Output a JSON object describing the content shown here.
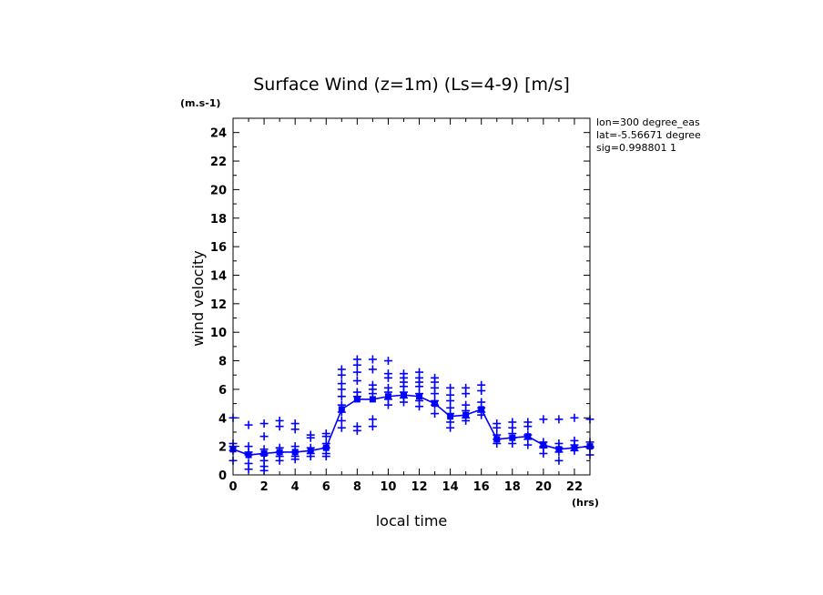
{
  "chart_data": {
    "type": "line",
    "title": "Surface Wind (z=1m) (Ls=4-9) [m/s]",
    "xlabel": "local time",
    "ylabel": "wind velocity",
    "x_unit": "(hrs)",
    "y_unit": "(m.s-1)",
    "xlim": [
      0,
      23
    ],
    "ylim": [
      0,
      25
    ],
    "x_ticks": [
      0,
      2,
      4,
      6,
      8,
      10,
      12,
      14,
      16,
      18,
      20,
      22
    ],
    "x_tick_labels": [
      "0",
      "2",
      "4",
      "6",
      "8",
      "10",
      "12",
      "14",
      "16",
      "18",
      "20",
      "22"
    ],
    "y_ticks": [
      0,
      2,
      4,
      6,
      8,
      10,
      12,
      14,
      16,
      18,
      20,
      22,
      24
    ],
    "y_tick_labels": [
      "0",
      "2",
      "4",
      "6",
      "8",
      "10",
      "12",
      "14",
      "16",
      "18",
      "20",
      "22",
      "24"
    ],
    "color": "#0000ff",
    "annotations": [
      "lon=300 degree_eas",
      "lat=-5.56671 degree",
      "sig=0.998801 1"
    ],
    "series": [
      {
        "name": "mean",
        "style": "line+square",
        "x": [
          0,
          1,
          2,
          3,
          4,
          5,
          6,
          7,
          8,
          9,
          10,
          11,
          12,
          13,
          14,
          15,
          16,
          17,
          18,
          19,
          20,
          21,
          22,
          23
        ],
        "y": [
          1.8,
          1.4,
          1.5,
          1.6,
          1.6,
          1.7,
          1.9,
          4.6,
          5.3,
          5.3,
          5.5,
          5.6,
          5.5,
          5.0,
          4.1,
          4.2,
          4.6,
          2.5,
          2.6,
          2.7,
          2.1,
          1.8,
          1.9,
          2.0
        ]
      },
      {
        "name": "samples",
        "style": "plus",
        "points": [
          [
            0,
            4.0
          ],
          [
            0,
            2.2
          ],
          [
            0,
            2.0
          ],
          [
            0,
            1.7
          ],
          [
            0,
            1.0
          ],
          [
            1,
            3.5
          ],
          [
            1,
            2.0
          ],
          [
            1,
            1.6
          ],
          [
            1,
            1.4
          ],
          [
            1,
            0.8
          ],
          [
            1,
            0.4
          ],
          [
            2,
            3.6
          ],
          [
            2,
            2.7
          ],
          [
            2,
            1.8
          ],
          [
            2,
            1.4
          ],
          [
            2,
            1.0
          ],
          [
            2,
            0.6
          ],
          [
            2,
            0.3
          ],
          [
            3,
            3.8
          ],
          [
            3,
            3.4
          ],
          [
            3,
            1.9
          ],
          [
            3,
            1.6
          ],
          [
            3,
            1.3
          ],
          [
            3,
            1.0
          ],
          [
            4,
            3.6
          ],
          [
            4,
            3.2
          ],
          [
            4,
            2.0
          ],
          [
            4,
            1.6
          ],
          [
            4,
            1.3
          ],
          [
            4,
            1.1
          ],
          [
            5,
            2.8
          ],
          [
            5,
            2.6
          ],
          [
            5,
            1.9
          ],
          [
            5,
            1.5
          ],
          [
            5,
            1.3
          ],
          [
            6,
            2.9
          ],
          [
            6,
            2.7
          ],
          [
            6,
            2.2
          ],
          [
            6,
            1.9
          ],
          [
            6,
            1.5
          ],
          [
            6,
            1.3
          ],
          [
            7,
            7.4
          ],
          [
            7,
            7.0
          ],
          [
            7,
            6.4
          ],
          [
            7,
            6.0
          ],
          [
            7,
            5.5
          ],
          [
            7,
            4.9
          ],
          [
            7,
            4.4
          ],
          [
            7,
            3.8
          ],
          [
            7,
            3.3
          ],
          [
            8,
            8.1
          ],
          [
            8,
            7.7
          ],
          [
            8,
            7.2
          ],
          [
            8,
            6.6
          ],
          [
            8,
            5.8
          ],
          [
            8,
            5.5
          ],
          [
            8,
            3.4
          ],
          [
            8,
            3.1
          ],
          [
            9,
            8.1
          ],
          [
            9,
            7.4
          ],
          [
            9,
            6.3
          ],
          [
            9,
            6.0
          ],
          [
            9,
            5.7
          ],
          [
            9,
            3.9
          ],
          [
            9,
            3.4
          ],
          [
            10,
            8.0
          ],
          [
            10,
            7.1
          ],
          [
            10,
            6.8
          ],
          [
            10,
            6.1
          ],
          [
            10,
            5.8
          ],
          [
            10,
            5.3
          ],
          [
            10,
            4.9
          ],
          [
            11,
            7.1
          ],
          [
            11,
            6.8
          ],
          [
            11,
            6.5
          ],
          [
            11,
            6.2
          ],
          [
            11,
            5.8
          ],
          [
            11,
            5.4
          ],
          [
            11,
            5.1
          ],
          [
            12,
            7.2
          ],
          [
            12,
            6.8
          ],
          [
            12,
            6.5
          ],
          [
            12,
            6.2
          ],
          [
            12,
            5.7
          ],
          [
            12,
            5.2
          ],
          [
            12,
            4.8
          ],
          [
            13,
            6.8
          ],
          [
            13,
            6.5
          ],
          [
            13,
            6.1
          ],
          [
            13,
            5.7
          ],
          [
            13,
            5.2
          ],
          [
            13,
            4.9
          ],
          [
            13,
            4.3
          ],
          [
            14,
            6.1
          ],
          [
            14,
            5.6
          ],
          [
            14,
            5.2
          ],
          [
            14,
            4.7
          ],
          [
            14,
            4.3
          ],
          [
            14,
            3.7
          ],
          [
            14,
            3.3
          ],
          [
            15,
            6.1
          ],
          [
            15,
            5.7
          ],
          [
            15,
            4.9
          ],
          [
            15,
            4.5
          ],
          [
            15,
            4.0
          ],
          [
            15,
            3.8
          ],
          [
            16,
            6.3
          ],
          [
            16,
            5.9
          ],
          [
            16,
            5.1
          ],
          [
            16,
            4.7
          ],
          [
            16,
            4.4
          ],
          [
            16,
            4.2
          ],
          [
            17,
            3.6
          ],
          [
            17,
            3.3
          ],
          [
            17,
            2.8
          ],
          [
            17,
            2.5
          ],
          [
            17,
            2.2
          ],
          [
            18,
            3.7
          ],
          [
            18,
            3.3
          ],
          [
            18,
            2.9
          ],
          [
            18,
            2.6
          ],
          [
            18,
            2.2
          ],
          [
            19,
            3.7
          ],
          [
            19,
            3.4
          ],
          [
            19,
            2.8
          ],
          [
            19,
            2.5
          ],
          [
            19,
            2.1
          ],
          [
            20,
            3.9
          ],
          [
            20,
            2.3
          ],
          [
            20,
            2.0
          ],
          [
            20,
            1.9
          ],
          [
            20,
            1.5
          ],
          [
            21,
            3.9
          ],
          [
            21,
            2.2
          ],
          [
            21,
            1.9
          ],
          [
            21,
            1.6
          ],
          [
            21,
            1.0
          ],
          [
            22,
            4.0
          ],
          [
            22,
            2.4
          ],
          [
            22,
            2.1
          ],
          [
            22,
            1.9
          ],
          [
            22,
            1.7
          ],
          [
            23,
            3.9
          ],
          [
            23,
            2.3
          ],
          [
            23,
            2.0
          ],
          [
            23,
            1.9
          ],
          [
            23,
            1.4
          ]
        ]
      }
    ]
  }
}
